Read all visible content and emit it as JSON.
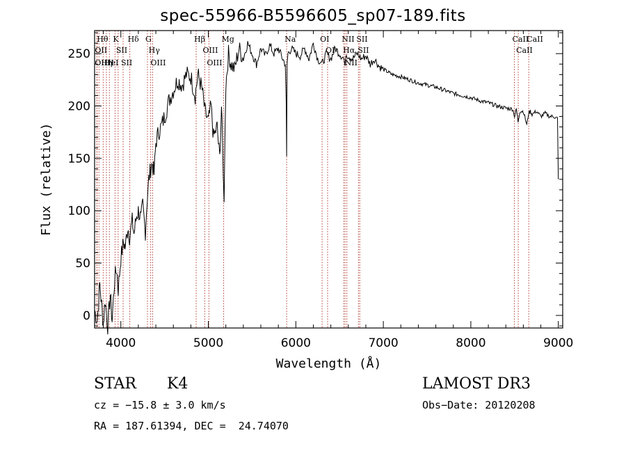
{
  "chart_data": {
    "type": "line",
    "title": "spec-55966-B5596605_sp07-189.fits",
    "xlabel": "Wavelength (Å)",
    "ylabel": "Flux (relative)",
    "xlim": [
      3700,
      9050
    ],
    "ylim": [
      -12,
      272
    ],
    "xticks": [
      4000,
      5000,
      6000,
      7000,
      8000,
      9000
    ],
    "yticks": [
      0,
      50,
      100,
      150,
      200,
      250
    ],
    "grid": false,
    "series": [
      {
        "x": [
          3700,
          3730,
          3760,
          3780,
          3800,
          3820,
          3850,
          3880,
          3900,
          3930,
          3950,
          3970,
          4000,
          4030,
          4050,
          4080,
          4100,
          4130,
          4150,
          4180,
          4200,
          4230,
          4250,
          4280,
          4300,
          4320,
          4340,
          4360,
          4380,
          4400,
          4430,
          4460,
          4500,
          4550,
          4600,
          4650,
          4700,
          4750,
          4800,
          4850,
          4880,
          4900,
          4930,
          4960,
          5000,
          5030,
          5060,
          5100,
          5130,
          5150,
          5170,
          5180,
          5190,
          5200,
          5230,
          5260,
          5300,
          5350,
          5400,
          5450,
          5500,
          5550,
          5600,
          5650,
          5700,
          5750,
          5800,
          5850,
          5880,
          5890,
          5895,
          5900,
          5910,
          5950,
          6000,
          6050,
          6100,
          6150,
          6200,
          6250,
          6300,
          6350,
          6400,
          6450,
          6500,
          6550,
          6560,
          6570,
          6600,
          6650,
          6700,
          6750,
          6800,
          6850,
          6900,
          6950,
          7000,
          7100,
          7200,
          7300,
          7400,
          7500,
          7600,
          7700,
          7800,
          7900,
          8000,
          8100,
          8200,
          8300,
          8400,
          8480,
          8500,
          8520,
          8540,
          8560,
          8600,
          8640,
          8660,
          8680,
          8700,
          8750,
          8800,
          8850,
          8900,
          8950,
          8990,
          9000
        ],
        "y": [
          5,
          -5,
          30,
          10,
          -8,
          15,
          -10,
          20,
          -5,
          35,
          45,
          25,
          55,
          70,
          65,
          85,
          75,
          90,
          78,
          95,
          100,
          92,
          105,
          80,
          110,
          130,
          140,
          145,
          135,
          165,
          175,
          180,
          190,
          205,
          215,
          225,
          220,
          230,
          228,
          210,
          230,
          225,
          215,
          195,
          185,
          200,
          170,
          180,
          150,
          200,
          140,
          105,
          175,
          220,
          250,
          240,
          235,
          255,
          245,
          260,
          250,
          240,
          255,
          248,
          258,
          250,
          255,
          245,
          240,
          200,
          150,
          240,
          250,
          255,
          250,
          248,
          255,
          245,
          260,
          245,
          240,
          250,
          245,
          255,
          250,
          245,
          235,
          250,
          248,
          245,
          250,
          245,
          248,
          240,
          245,
          238,
          235,
          230,
          228,
          225,
          222,
          220,
          218,
          215,
          212,
          210,
          208,
          205,
          203,
          200,
          198,
          197,
          190,
          197,
          185,
          195,
          195,
          182,
          193,
          195,
          192,
          195,
          190,
          193,
          190,
          190,
          188,
          130
        ],
        "color": "#000000"
      }
    ],
    "lines": [
      {
        "x": 3750,
        "label": "Hθ"
      },
      {
        "x": 3727,
        "label": "OII"
      },
      {
        "x": 3727,
        "label": "OIII"
      },
      {
        "x": 3798,
        "label": "Hη"
      },
      {
        "x": 3835,
        "label": "HeI"
      },
      {
        "x": 3869,
        "label": "H"
      },
      {
        "x": 3934,
        "label": "K"
      },
      {
        "x": 3969,
        "label": "SII"
      },
      {
        "x": 4102,
        "label": "Hδ"
      },
      {
        "x": 4026,
        "label": "SII"
      },
      {
        "x": 4304,
        "label": "G"
      },
      {
        "x": 4341,
        "label": "Hγ"
      },
      {
        "x": 4363,
        "label": "OIII"
      },
      {
        "x": 4861,
        "label": "Hβ"
      },
      {
        "x": 4959,
        "label": "OIII"
      },
      {
        "x": 5007,
        "label": "OIII"
      },
      {
        "x": 5175,
        "label": "Mg"
      },
      {
        "x": 5895,
        "label": "Na"
      },
      {
        "x": 6300,
        "label": "OI"
      },
      {
        "x": 6363,
        "label": "OI"
      },
      {
        "x": 6548,
        "label": "NII"
      },
      {
        "x": 6563,
        "label": "Hα"
      },
      {
        "x": 6583,
        "label": "NII"
      },
      {
        "x": 6716,
        "label": "SII"
      },
      {
        "x": 6731,
        "label": "SII"
      },
      {
        "x": 8498,
        "label": "CaII"
      },
      {
        "x": 8542,
        "label": "CaII"
      },
      {
        "x": 8662,
        "label": "CaII"
      }
    ]
  },
  "info": {
    "object_type": "STAR",
    "subclass": "K4",
    "survey": "LAMOST DR3",
    "cz": "cz = −15.8 ± 3.0 km/s",
    "obs_date": "Obs−Date: 20120208",
    "coords": "RA = 187.61394, DEC =  24.74070"
  }
}
